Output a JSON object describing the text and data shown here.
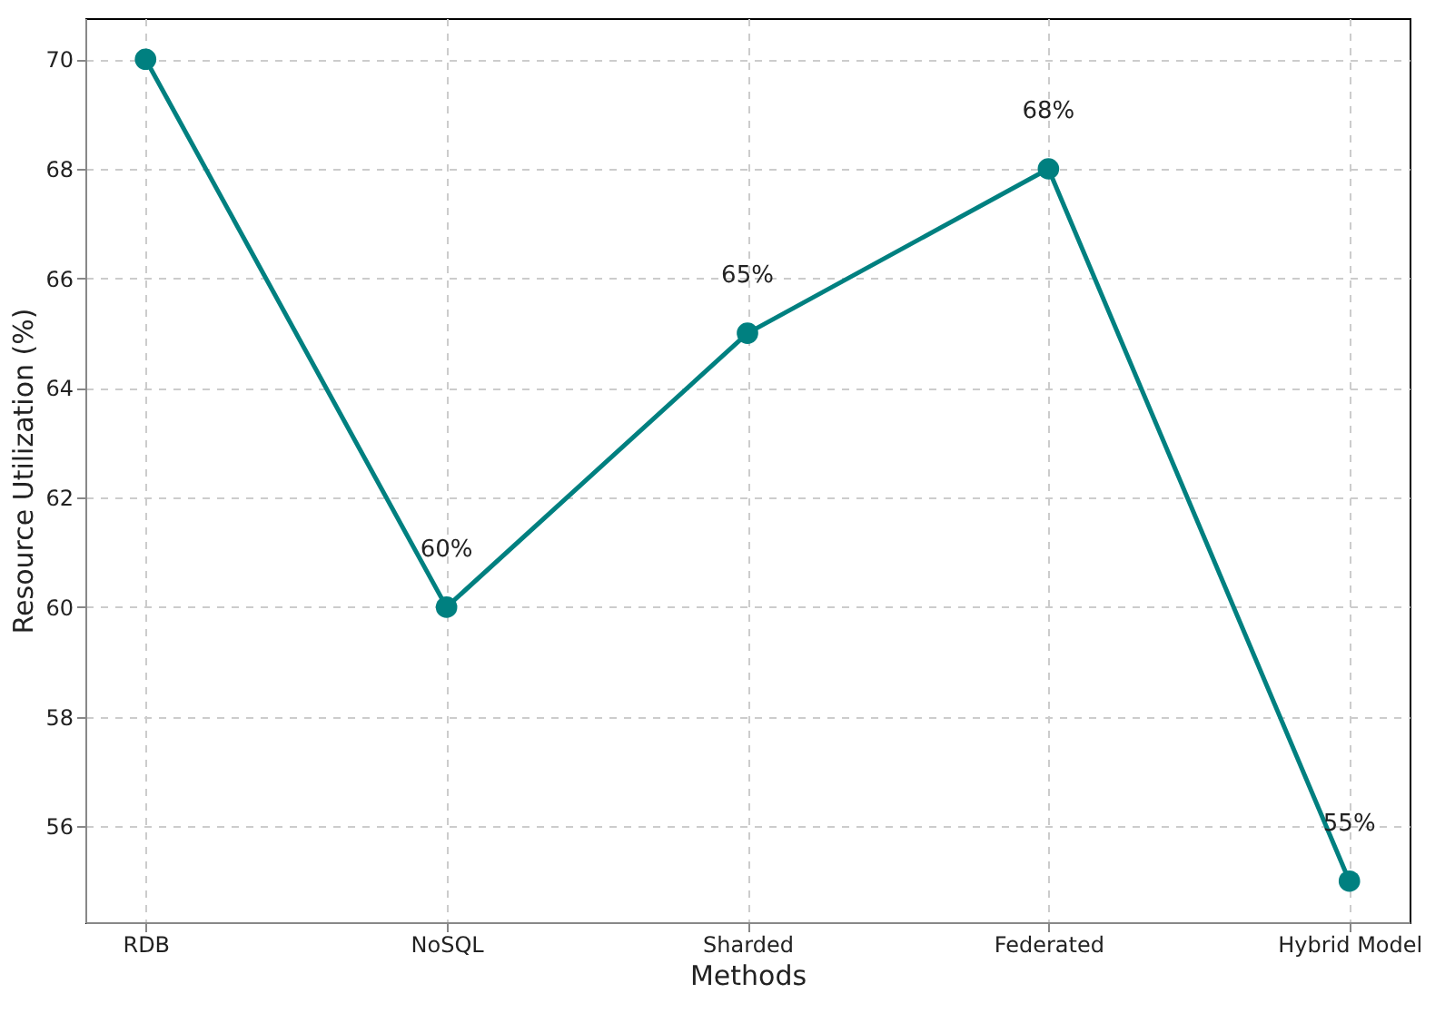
{
  "chart_data": {
    "type": "line",
    "xlabel": "Methods",
    "ylabel": "Resource Utilization (%)",
    "categories": [
      "RDB",
      "NoSQL",
      "Sharded",
      "Federated",
      "Hybrid Model"
    ],
    "values": [
      70,
      60,
      65,
      68,
      55
    ],
    "value_labels": [
      null,
      "60%",
      "65%",
      "68%",
      "55%"
    ],
    "color": "#008080",
    "marker": "circle",
    "line_style": "solid",
    "ylim": [
      54.25,
      70.75
    ],
    "yticks": [
      56,
      58,
      60,
      62,
      64,
      66,
      68,
      70
    ],
    "grid": true
  }
}
